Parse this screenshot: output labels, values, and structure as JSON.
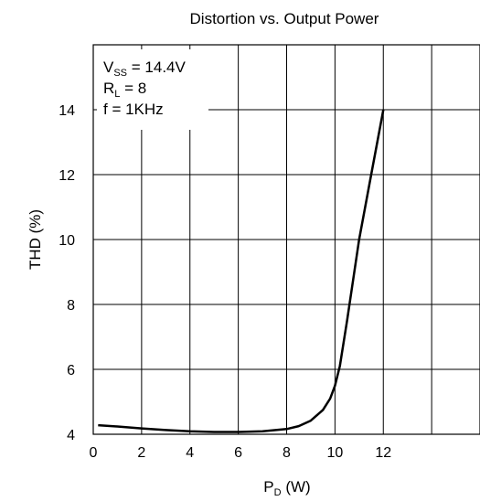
{
  "chart_data": {
    "type": "line",
    "title": "Distortion vs. Output Power",
    "xlabel": {
      "main": "P",
      "sub": "D",
      "rest": " (W)"
    },
    "ylabel": "THD (%)",
    "xlim": [
      0,
      16
    ],
    "ylim": [
      4,
      16
    ],
    "x_ticks": [
      "0",
      "2",
      "4",
      "6",
      "8",
      "10",
      "12"
    ],
    "y_ticks": [
      "4",
      "6",
      "8",
      "10",
      "12",
      "14"
    ],
    "grid": true,
    "annotations": [
      {
        "main": "V",
        "sub": "SS",
        "rest": " = 14.4V"
      },
      {
        "main": "R",
        "sub": "L",
        "rest": " = 8"
      },
      {
        "main": "f = 1KHz",
        "sub": "",
        "rest": ""
      }
    ],
    "series": [
      {
        "x": [
          0.2,
          1,
          2,
          3,
          4,
          5,
          6,
          7,
          8,
          8.5,
          9,
          9.5,
          9.8,
          10,
          10.2,
          10.5,
          11,
          11.5,
          12
        ],
        "y": [
          4.28,
          4.24,
          4.18,
          4.13,
          4.09,
          4.07,
          4.07,
          4.09,
          4.16,
          4.25,
          4.42,
          4.75,
          5.1,
          5.5,
          6.1,
          7.5,
          10.0,
          12.0,
          14.0
        ]
      }
    ]
  }
}
